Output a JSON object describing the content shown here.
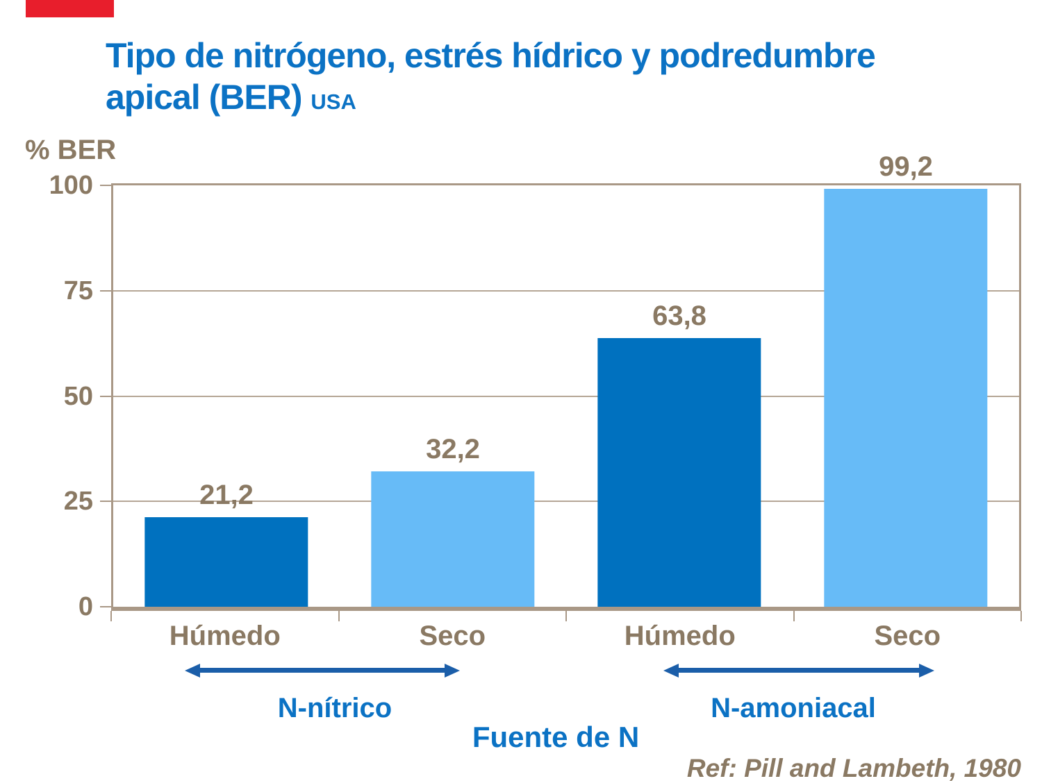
{
  "title": {
    "line1": "Tipo de nitrógeno, estrés hídrico y podredumbre",
    "line2": "apical (BER)",
    "suffix": "USA"
  },
  "reference": "Ref: Pill and Lambeth, 1980",
  "chart_data": {
    "type": "bar",
    "title": "Tipo de nitrógeno, estrés hídrico y podredumbre apical (BER) USA",
    "categories": [
      "Húmedo",
      "Seco",
      "Húmedo",
      "Seco"
    ],
    "values": [
      21.2,
      32.2,
      63.8,
      99.2
    ],
    "value_labels": [
      "21,2",
      "32,2",
      "63,8",
      "99,2"
    ],
    "bar_colors": [
      "#0071BF",
      "#67BBF7",
      "#0071BF",
      "#67BBF7"
    ],
    "groups": [
      {
        "label": "N-nítrico",
        "categories": [
          "Húmedo",
          "Seco"
        ]
      },
      {
        "label": "N-amoniacal",
        "categories": [
          "Húmedo",
          "Seco"
        ]
      }
    ],
    "ylabel": "% BER",
    "xlabel": "Fuente de N",
    "ylim": [
      0,
      100
    ],
    "yticks": [
      0,
      25,
      50,
      75,
      100
    ],
    "grid": true,
    "legend_position": "none"
  },
  "colors": {
    "title_blue": "#0B72C4",
    "arrow_blue": "#1B5EA9",
    "bar_dark_blue": "#0071BF",
    "bar_light_blue": "#67BBF7",
    "axis_text_brown": "#8A7963",
    "frame_taupe": "#A99886",
    "gridline_taupe": "#B5A696",
    "red_banner": "#E81E2C"
  }
}
